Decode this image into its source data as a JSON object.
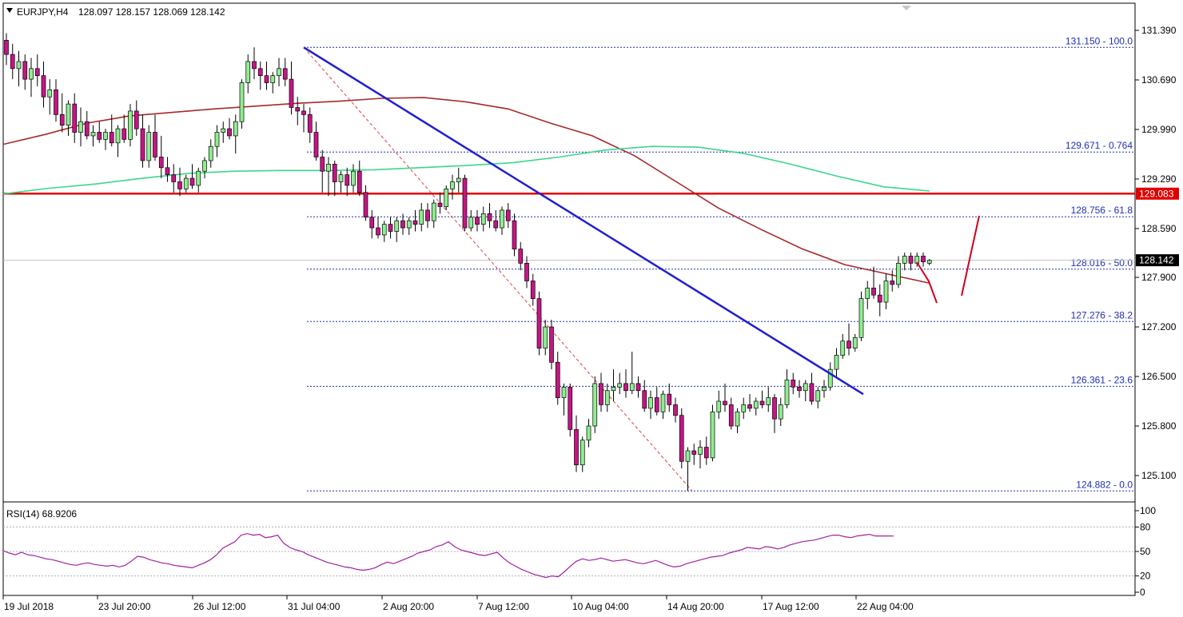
{
  "header": {
    "symbol_label": "EURJPY,H4",
    "ohlc": "128.097 128.157 128.069 128.142"
  },
  "colors": {
    "bull_candle": "#90ee90",
    "bear_candle": "#c71585",
    "ma_long": "#a52a2a",
    "ma_short": "#3cd68a",
    "trendline": "#1f1fd0",
    "resistance": "#e00000",
    "fibonacci": "#1f2fb0",
    "rsi": "#a020a0",
    "arrows": "#d00020"
  },
  "chart_data": [
    {
      "type": "candlestick",
      "title": "EURJPY,H4",
      "ylim": [
        124.88,
        131.45
      ],
      "price_ticks": [
        "131.390",
        "130.690",
        "129.990",
        "129.290",
        "128.590",
        "127.900",
        "127.200",
        "126.500",
        "125.800",
        "125.100"
      ],
      "x_tick_labels": [
        "19 Jul 2018",
        "23 Jul 20:00",
        "26 Jul 12:00",
        "31 Jul 04:00",
        "2 Aug 20:00",
        "7 Aug 12:00",
        "10 Aug 04:00",
        "14 Aug 20:00",
        "17 Aug 12:00",
        "22 Aug 04:00"
      ],
      "current_price": "128.142",
      "resistance_level": {
        "value": 129.083,
        "label": "129.083"
      },
      "fibonacci_levels": [
        {
          "label": "131.150 - 100.0",
          "value": 131.15
        },
        {
          "label": "129.671 - 0.764",
          "value": 129.671
        },
        {
          "label": "128.756 - 61.8",
          "value": 128.756
        },
        {
          "label": "128.016 - 50.0",
          "value": 128.016
        },
        {
          "label": "127.276 - 38.2",
          "value": 127.276
        },
        {
          "label": "126.361 - 23.6",
          "value": 126.361
        },
        {
          "label": "124.882 - 0.0",
          "value": 124.882
        }
      ],
      "candles": [
        [
          131.25,
          131.35,
          130.9,
          131.05
        ],
        [
          131.05,
          131.2,
          130.7,
          130.85
        ],
        [
          130.85,
          131.1,
          130.6,
          130.95
        ],
        [
          130.95,
          131.05,
          130.55,
          130.7
        ],
        [
          130.7,
          131.0,
          130.45,
          130.85
        ],
        [
          130.85,
          131.05,
          130.6,
          130.75
        ],
        [
          130.75,
          130.95,
          130.3,
          130.45
        ],
        [
          130.45,
          130.7,
          130.2,
          130.55
        ],
        [
          130.55,
          130.7,
          130.1,
          130.2
        ],
        [
          130.2,
          130.5,
          129.95,
          130.05
        ],
        [
          130.05,
          130.4,
          129.9,
          130.35
        ],
        [
          130.35,
          130.5,
          129.8,
          129.95
        ],
        [
          129.95,
          130.3,
          129.75,
          130.1
        ],
        [
          130.1,
          130.25,
          129.85,
          129.9
        ],
        [
          129.9,
          130.05,
          129.75,
          129.95
        ],
        [
          129.95,
          130.1,
          129.8,
          129.85
        ],
        [
          129.85,
          130.0,
          129.7,
          129.95
        ],
        [
          129.95,
          130.2,
          129.75,
          129.8
        ],
        [
          129.8,
          130.05,
          129.6,
          130.0
        ],
        [
          130.0,
          130.2,
          129.8,
          129.85
        ],
        [
          129.85,
          130.35,
          129.75,
          130.25
        ],
        [
          130.25,
          130.4,
          129.9,
          130.0
        ],
        [
          130.0,
          130.2,
          129.45,
          129.55
        ],
        [
          129.55,
          130.05,
          129.45,
          129.95
        ],
        [
          129.95,
          130.2,
          129.55,
          129.6
        ],
        [
          129.6,
          129.9,
          129.3,
          129.45
        ],
        [
          129.45,
          129.6,
          129.25,
          129.35
        ],
        [
          129.35,
          129.5,
          129.1,
          129.25
        ],
        [
          129.25,
          129.45,
          129.05,
          129.15
        ],
        [
          129.15,
          129.35,
          129.1,
          129.3
        ],
        [
          129.3,
          129.5,
          129.15,
          129.2
        ],
        [
          129.2,
          129.45,
          129.1,
          129.4
        ],
        [
          129.4,
          129.6,
          129.3,
          129.55
        ],
        [
          129.55,
          129.85,
          129.45,
          129.75
        ],
        [
          129.75,
          130.05,
          129.6,
          129.95
        ],
        [
          129.95,
          130.1,
          129.8,
          130.0
        ],
        [
          130.0,
          130.15,
          129.85,
          129.9
        ],
        [
          129.9,
          130.2,
          129.65,
          130.1
        ],
        [
          130.1,
          130.7,
          130.0,
          130.65
        ],
        [
          130.65,
          131.05,
          130.5,
          130.95
        ],
        [
          130.95,
          131.15,
          130.7,
          130.85
        ],
        [
          130.85,
          130.95,
          130.55,
          130.75
        ],
        [
          130.75,
          130.95,
          130.55,
          130.65
        ],
        [
          130.65,
          130.8,
          130.5,
          130.75
        ],
        [
          130.75,
          131.0,
          130.6,
          130.85
        ],
        [
          130.85,
          131.0,
          130.6,
          130.7
        ],
        [
          130.7,
          130.95,
          130.2,
          130.3
        ],
        [
          130.3,
          130.45,
          130.05,
          130.25
        ],
        [
          130.25,
          130.35,
          129.95,
          130.2
        ],
        [
          130.2,
          130.3,
          129.8,
          129.95
        ],
        [
          129.95,
          130.1,
          129.55,
          129.6
        ],
        [
          129.6,
          129.7,
          129.1,
          129.4
        ],
        [
          129.4,
          129.6,
          129.05,
          129.5
        ],
        [
          129.5,
          129.55,
          129.05,
          129.25
        ],
        [
          129.25,
          129.4,
          129.1,
          129.35
        ],
        [
          129.35,
          129.45,
          129.05,
          129.2
        ],
        [
          129.2,
          129.5,
          129.1,
          129.4
        ],
        [
          129.4,
          129.55,
          129.05,
          129.1
        ],
        [
          129.1,
          129.2,
          128.7,
          128.75
        ],
        [
          128.75,
          128.85,
          128.45,
          128.6
        ],
        [
          128.6,
          128.75,
          128.45,
          128.5
        ],
        [
          128.5,
          128.7,
          128.4,
          128.65
        ],
        [
          128.65,
          128.75,
          128.45,
          128.55
        ],
        [
          128.55,
          128.75,
          128.4,
          128.7
        ],
        [
          128.7,
          128.8,
          128.5,
          128.6
        ],
        [
          128.6,
          128.75,
          128.5,
          128.7
        ],
        [
          128.7,
          128.85,
          128.55,
          128.65
        ],
        [
          128.65,
          128.95,
          128.55,
          128.85
        ],
        [
          128.85,
          128.95,
          128.6,
          128.7
        ],
        [
          128.7,
          129.0,
          128.6,
          128.95
        ],
        [
          128.95,
          129.1,
          128.8,
          128.9
        ],
        [
          128.9,
          129.2,
          128.85,
          129.15
        ],
        [
          129.15,
          129.35,
          129.0,
          129.25
        ],
        [
          129.25,
          129.45,
          129.1,
          129.3
        ],
        [
          129.3,
          129.35,
          128.55,
          128.6
        ],
        [
          128.6,
          128.85,
          128.55,
          128.75
        ],
        [
          128.75,
          128.85,
          128.55,
          128.65
        ],
        [
          128.65,
          128.9,
          128.55,
          128.8
        ],
        [
          128.8,
          128.95,
          128.6,
          128.7
        ],
        [
          128.7,
          128.85,
          128.55,
          128.6
        ],
        [
          128.6,
          128.9,
          128.5,
          128.85
        ],
        [
          128.85,
          128.95,
          128.6,
          128.7
        ],
        [
          128.7,
          128.8,
          128.2,
          128.3
        ],
        [
          128.3,
          128.4,
          128.0,
          128.1
        ],
        [
          128.1,
          128.2,
          127.75,
          127.85
        ],
        [
          127.85,
          127.95,
          127.5,
          127.6
        ],
        [
          127.6,
          127.7,
          126.8,
          126.9
        ],
        [
          126.9,
          127.3,
          126.8,
          127.2
        ],
        [
          127.2,
          127.3,
          126.6,
          126.7
        ],
        [
          126.7,
          126.85,
          126.1,
          126.2
        ],
        [
          126.2,
          126.4,
          125.95,
          126.35
        ],
        [
          126.35,
          126.4,
          125.65,
          125.75
        ],
        [
          125.75,
          125.95,
          125.15,
          125.25
        ],
        [
          125.25,
          125.65,
          125.15,
          125.6
        ],
        [
          125.6,
          125.9,
          125.5,
          125.8
        ],
        [
          125.8,
          126.5,
          125.7,
          126.4
        ],
        [
          126.4,
          126.55,
          126.0,
          126.1
        ],
        [
          126.1,
          126.4,
          126.0,
          126.3
        ],
        [
          126.3,
          126.6,
          126.15,
          126.35
        ],
        [
          126.35,
          126.55,
          126.25,
          126.4
        ],
        [
          126.4,
          126.6,
          126.2,
          126.3
        ],
        [
          126.3,
          126.85,
          126.25,
          126.4
        ],
        [
          126.4,
          126.5,
          126.2,
          126.3
        ],
        [
          126.3,
          126.45,
          126.0,
          126.05
        ],
        [
          126.05,
          126.3,
          125.9,
          126.2
        ],
        [
          126.2,
          126.35,
          125.95,
          126.0
        ],
        [
          126.0,
          126.3,
          125.9,
          126.25
        ],
        [
          126.25,
          126.4,
          126.0,
          126.1
        ],
        [
          126.1,
          126.2,
          125.85,
          125.95
        ],
        [
          125.95,
          126.05,
          125.2,
          125.3
        ],
        [
          125.3,
          125.5,
          124.88,
          125.45
        ],
        [
          125.45,
          125.55,
          125.25,
          125.4
        ],
        [
          125.4,
          125.6,
          125.2,
          125.5
        ],
        [
          125.5,
          125.65,
          125.25,
          125.35
        ],
        [
          125.35,
          126.1,
          125.3,
          126.0
        ],
        [
          126.0,
          126.3,
          125.9,
          126.15
        ],
        [
          126.15,
          126.4,
          126.0,
          126.1
        ],
        [
          126.1,
          126.2,
          125.75,
          125.8
        ],
        [
          125.8,
          126.05,
          125.7,
          126.0
        ],
        [
          126.0,
          126.2,
          125.9,
          126.1
        ],
        [
          126.1,
          126.25,
          126.0,
          126.05
        ],
        [
          126.05,
          126.2,
          125.95,
          126.15
        ],
        [
          126.15,
          126.3,
          126.05,
          126.1
        ],
        [
          126.1,
          126.35,
          126.0,
          126.2
        ],
        [
          126.2,
          126.25,
          125.7,
          125.9
        ],
        [
          125.9,
          126.2,
          125.8,
          126.1
        ],
        [
          126.1,
          126.6,
          126.05,
          126.45
        ],
        [
          126.45,
          126.55,
          126.25,
          126.35
        ],
        [
          126.35,
          126.45,
          126.2,
          126.3
        ],
        [
          126.3,
          126.45,
          126.15,
          126.4
        ],
        [
          126.4,
          126.55,
          126.1,
          126.15
        ],
        [
          126.15,
          126.35,
          126.05,
          126.3
        ],
        [
          126.3,
          126.45,
          126.2,
          126.35
        ],
        [
          126.35,
          126.7,
          126.3,
          126.6
        ],
        [
          126.6,
          126.9,
          126.5,
          126.8
        ],
        [
          126.8,
          127.1,
          126.75,
          127.0
        ],
        [
          127.0,
          127.25,
          126.8,
          126.9
        ],
        [
          126.9,
          127.1,
          126.85,
          127.05
        ],
        [
          127.05,
          127.7,
          127.0,
          127.6
        ],
        [
          127.6,
          127.85,
          127.45,
          127.75
        ],
        [
          127.75,
          128.05,
          127.6,
          127.65
        ],
        [
          127.65,
          127.8,
          127.35,
          127.55
        ],
        [
          127.55,
          127.95,
          127.45,
          127.85
        ],
        [
          127.85,
          128.0,
          127.7,
          127.8
        ],
        [
          127.8,
          128.2,
          127.75,
          128.1
        ],
        [
          128.1,
          128.25,
          128.0,
          128.2
        ],
        [
          128.2,
          128.25,
          128.0,
          128.1
        ],
        [
          128.1,
          128.25,
          128.05,
          128.2
        ],
        [
          128.2,
          128.25,
          128.05,
          128.12
        ],
        [
          128.1,
          128.16,
          128.07,
          128.14
        ]
      ],
      "ma_short_values": [
        129.08,
        129.16,
        129.22,
        129.3,
        129.37,
        129.4,
        129.41,
        129.41,
        129.42,
        129.45,
        129.48,
        129.52,
        129.6,
        129.7,
        129.75,
        129.74,
        129.65,
        129.5,
        129.33,
        129.18,
        129.12
      ],
      "ma_long_values": [
        129.78,
        129.92,
        130.08,
        130.18,
        130.23,
        130.28,
        130.32,
        130.36,
        130.39,
        130.43,
        130.44,
        130.38,
        130.28,
        130.08,
        129.9,
        129.62,
        129.25,
        128.88,
        128.58,
        128.3,
        128.08,
        127.95,
        127.82
      ]
    },
    {
      "type": "line",
      "title": "RSI(14) 68.9206",
      "ylim": [
        0,
        100
      ],
      "y_ticks": [
        "100",
        "80",
        "50",
        "20",
        "0"
      ],
      "values": [
        51,
        48,
        46,
        49,
        46,
        45,
        43,
        41,
        40,
        38,
        36,
        34,
        33,
        35,
        36,
        34,
        33,
        32,
        33,
        31,
        33,
        38,
        44,
        43,
        40,
        38,
        36,
        35,
        33,
        32,
        31,
        30,
        33,
        36,
        40,
        46,
        54,
        58,
        62,
        70,
        72,
        70,
        71,
        67,
        68,
        70,
        60,
        55,
        52,
        50,
        46,
        43,
        40,
        37,
        35,
        33,
        31,
        30,
        28,
        27,
        28,
        30,
        34,
        37,
        35,
        38,
        41,
        44,
        48,
        50,
        52,
        56,
        58,
        62,
        56,
        52,
        50,
        48,
        46,
        45,
        47,
        49,
        42,
        36,
        32,
        28,
        25,
        22,
        20,
        18,
        20,
        19,
        25,
        32,
        38,
        41,
        39,
        40,
        42,
        40,
        38,
        39,
        40,
        38,
        36,
        35,
        37,
        39,
        36,
        33,
        31,
        32,
        35,
        37,
        39,
        41,
        43,
        44,
        45,
        48,
        50,
        52,
        55,
        54,
        53,
        56,
        55,
        53,
        55,
        58,
        60,
        62,
        63,
        64,
        66,
        68,
        70,
        70,
        68,
        67,
        69,
        70,
        71,
        69,
        69,
        69,
        68.92
      ]
    }
  ]
}
